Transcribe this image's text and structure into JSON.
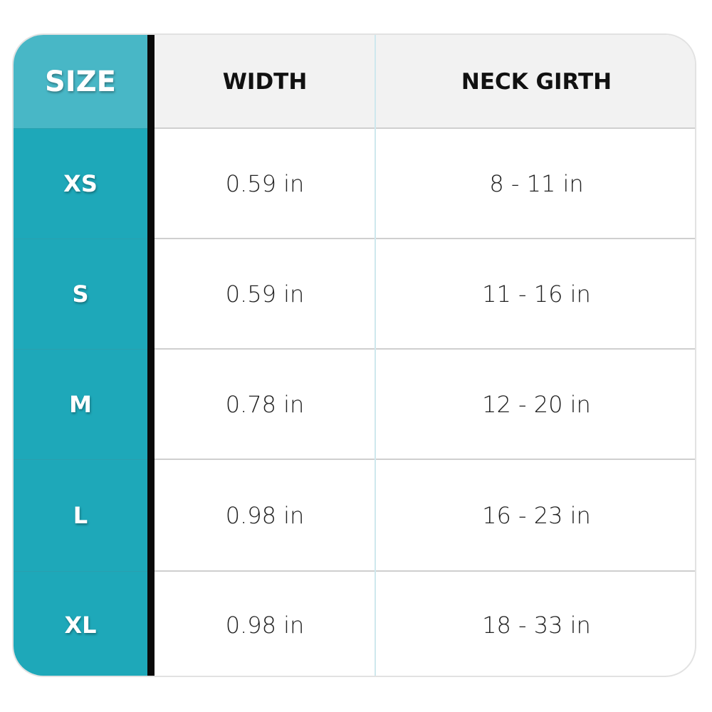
{
  "table": {
    "headers": [
      "SIZE",
      "WIDTH",
      "NECK GIRTH"
    ],
    "rows": [
      [
        "XS",
        "0.59 in",
        "8 - 11 in"
      ],
      [
        "S",
        "0.59 in",
        "11 - 16 in"
      ],
      [
        "M",
        "0.78 in",
        "12 - 20 in"
      ],
      [
        "L",
        "0.98 in",
        "16 - 23 in"
      ],
      [
        "XL",
        "0.98 in",
        "18 - 33 in"
      ]
    ]
  }
}
